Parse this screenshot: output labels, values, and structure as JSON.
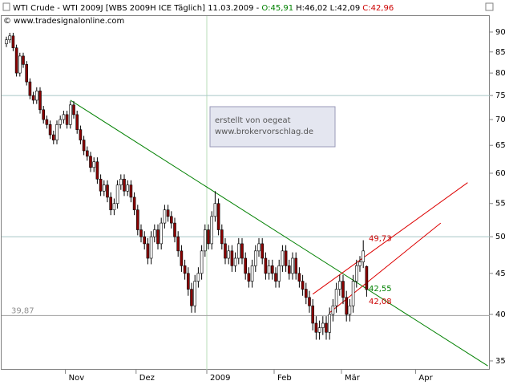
{
  "chart_data": {
    "type": "candlestick",
    "title": "WTI Crude - WTI 2009J [WBS 2009H ICE  Täglich] 11.03.2009 - ",
    "ohlc_labels": [
      {
        "label": "O:45,91",
        "color": "#008000"
      },
      {
        "label": "H:46,02",
        "color": "#000000"
      },
      {
        "label": "L:42,09",
        "color": "#000000"
      },
      {
        "label": "C:42,96",
        "color": "#cc0000"
      }
    ],
    "copyright": "© www.tradesignalonline.com",
    "annotation": [
      "erstellt von oegeat",
      "www.brokervorschlag.de"
    ],
    "categories": [
      null,
      null,
      null,
      null,
      null,
      null,
      null,
      null,
      null,
      null,
      null,
      null,
      null,
      null,
      null,
      null,
      null,
      null,
      "Nov",
      null,
      null,
      null,
      null,
      null,
      null,
      null,
      null,
      null,
      null,
      null,
      null,
      null,
      null,
      null,
      null,
      null,
      null,
      null,
      null,
      "Dez",
      null,
      null,
      null,
      null,
      null,
      null,
      null,
      null,
      null,
      null,
      null,
      null,
      null,
      null,
      null,
      null,
      null,
      null,
      null,
      null,
      "2009",
      null,
      null,
      null,
      null,
      null,
      null,
      null,
      null,
      null,
      null,
      null,
      null,
      null,
      null,
      null,
      null,
      null,
      null,
      null,
      "Feb",
      null,
      null,
      null,
      null,
      null,
      null,
      null,
      null,
      null,
      null,
      null,
      null,
      null,
      null,
      null,
      null,
      null,
      null,
      null,
      "Mär",
      null,
      null,
      null,
      null,
      null,
      null,
      null,
      null,
      null,
      null,
      null,
      null,
      null,
      null,
      null,
      null,
      null,
      null,
      null,
      null,
      null,
      "Apr",
      null,
      null,
      null,
      null,
      null,
      null,
      null,
      null,
      null,
      null,
      null,
      null,
      null,
      null,
      null,
      null,
      null,
      null,
      null,
      null,
      null
    ],
    "open": [
      87,
      88,
      89,
      86,
      80,
      84,
      82,
      78,
      75,
      74,
      76,
      72,
      70,
      69,
      67,
      66,
      69,
      70,
      71,
      69,
      73,
      71,
      68,
      66,
      64,
      63,
      61,
      62,
      59,
      57,
      58,
      56,
      54,
      55,
      58,
      59,
      57,
      58,
      56,
      54,
      51,
      50,
      49,
      47,
      50,
      51,
      49,
      52,
      54,
      53,
      52,
      50,
      48,
      46,
      45,
      43,
      41,
      44,
      45,
      48,
      51,
      49,
      53,
      55,
      51,
      49,
      47,
      48,
      46,
      47,
      49,
      47,
      45,
      44,
      46,
      48,
      49,
      47,
      45,
      46,
      45,
      44,
      46,
      48,
      46,
      45,
      47,
      45,
      44,
      43,
      42,
      41,
      39,
      38,
      38.5,
      39,
      38,
      40,
      41,
      43,
      44,
      42,
      40,
      41,
      44,
      46,
      46.5,
      45.91,
      null,
      null,
      null,
      null,
      null,
      null,
      null,
      null,
      null,
      null,
      null,
      null,
      null,
      null,
      null,
      null,
      null,
      null,
      null,
      null,
      null,
      null,
      null,
      null,
      null,
      null,
      null,
      null,
      null,
      null,
      null,
      null,
      null,
      null,
      null,
      null
    ],
    "high": [
      88.8,
      89.8,
      89.8,
      86.8,
      84.8,
      84.8,
      82.8,
      78.8,
      75.8,
      76.8,
      76.8,
      72.8,
      70.8,
      69.8,
      67.8,
      69.8,
      70.8,
      71.8,
      71.8,
      73.8,
      73.8,
      71.8,
      68.8,
      66.8,
      64.8,
      63.8,
      62.8,
      62.8,
      59.8,
      58.8,
      58.8,
      56.8,
      55.8,
      58.8,
      59.8,
      59.8,
      58.8,
      58.8,
      56.8,
      54.8,
      51.8,
      50.8,
      49.8,
      50.8,
      51.8,
      51.8,
      52.8,
      54.8,
      54.8,
      53.8,
      52.8,
      50.8,
      48.8,
      46.8,
      45.8,
      43.8,
      44.8,
      45.8,
      48.8,
      51.8,
      51.8,
      53.8,
      57,
      55.8,
      51.8,
      49.8,
      48.8,
      48.8,
      47.8,
      49.8,
      49.8,
      47.8,
      45.8,
      46.8,
      48.8,
      49.8,
      49.8,
      47.8,
      46.8,
      46.8,
      45.8,
      46.8,
      48.8,
      48.8,
      46.8,
      47.8,
      47.8,
      45.8,
      44.8,
      43.8,
      42.8,
      41.8,
      39.8,
      39.3,
      39.8,
      39.8,
      40.8,
      41.8,
      43.8,
      44.8,
      44.8,
      42.8,
      41.8,
      44.8,
      46.8,
      47.3,
      49.5,
      46.02,
      null,
      null,
      null,
      null,
      null,
      null,
      null,
      null,
      null,
      null,
      null,
      null,
      null,
      null,
      null,
      null,
      null,
      null,
      null,
      null,
      null,
      null,
      null,
      null,
      null,
      null,
      null,
      null,
      null,
      null,
      null,
      null,
      null,
      null,
      null,
      null
    ],
    "low": [
      86.2,
      87.2,
      85.2,
      79.2,
      79.2,
      81.2,
      77.2,
      74.2,
      73.2,
      73.2,
      71.2,
      69.2,
      68.2,
      66.2,
      65.2,
      65.2,
      68.2,
      69.2,
      68.2,
      68.2,
      70.2,
      67.2,
      65.2,
      63.2,
      62.2,
      60.2,
      60.2,
      58.2,
      56.2,
      56.2,
      55.2,
      53.2,
      53.2,
      54.2,
      57.2,
      56.2,
      56.2,
      55.2,
      53.2,
      50.2,
      49.2,
      48.2,
      46.2,
      46.2,
      49.2,
      48.2,
      48.2,
      51.2,
      52.2,
      51.2,
      49.2,
      47.2,
      45.2,
      44.2,
      42.2,
      40.2,
      40.2,
      43.2,
      44.2,
      47.2,
      48.2,
      48.2,
      52.2,
      50.2,
      48.2,
      46.2,
      46.2,
      45.2,
      45.2,
      46.2,
      46.2,
      44.2,
      43.2,
      43.2,
      45.2,
      47.2,
      46.2,
      44.2,
      44.2,
      44.2,
      43.2,
      43.2,
      45.2,
      45.2,
      44.2,
      44.2,
      44.2,
      43.2,
      42.2,
      41.2,
      40.2,
      38.2,
      37.2,
      37.2,
      37.7,
      37.2,
      37.2,
      39.2,
      40.2,
      42.2,
      41.2,
      39.2,
      39.2,
      40.2,
      43.2,
      45.2,
      45.7,
      42.09,
      null,
      null,
      null,
      null,
      null,
      null,
      null,
      null,
      null,
      null,
      null,
      null,
      null,
      null,
      null,
      null,
      null,
      null,
      null,
      null,
      null,
      null,
      null,
      null,
      null,
      null,
      null,
      null,
      null,
      null,
      null,
      null,
      null,
      null,
      null,
      null
    ],
    "close": [
      88,
      89,
      86,
      80,
      84,
      82,
      78,
      75,
      74,
      76,
      72,
      70,
      69,
      67,
      66,
      69,
      70,
      71,
      69,
      73,
      71,
      68,
      66,
      64,
      63,
      61,
      62,
      59,
      57,
      58,
      56,
      54,
      55,
      58,
      59,
      57,
      58,
      56,
      54,
      51,
      50,
      49,
      47,
      50,
      51,
      49,
      52,
      54,
      53,
      52,
      50,
      48,
      46,
      45,
      43,
      41,
      44,
      45,
      48,
      51,
      49,
      53,
      55,
      51,
      49,
      47,
      48,
      46,
      47,
      49,
      47,
      45,
      44,
      46,
      48,
      49,
      47,
      45,
      46,
      45,
      44,
      46,
      48,
      46,
      45,
      47,
      45,
      44,
      43,
      42,
      41,
      39,
      38,
      38.5,
      39,
      38,
      40,
      41,
      43,
      44,
      42,
      40,
      41,
      44,
      46,
      46.5,
      48,
      42.96,
      null,
      null,
      null,
      null,
      null,
      null,
      null,
      null,
      null,
      null,
      null,
      null,
      null,
      null,
      null,
      null,
      null,
      null,
      null,
      null,
      null,
      null,
      null,
      null,
      null,
      null,
      null,
      null,
      null,
      null,
      null,
      null,
      null,
      null,
      null,
      null
    ],
    "up_color": "#ffffff",
    "down_color": "#8b0000",
    "ylim": [
      34.2,
      93.8
    ],
    "log_scale": true,
    "yticks": [
      35,
      40,
      45,
      50,
      55,
      60,
      65,
      70,
      75,
      80,
      85,
      90
    ],
    "hlines": [
      75,
      50
    ],
    "support": {
      "value": 39.87,
      "label": "39,87"
    },
    "trendlines": [
      {
        "color": "#008000",
        "from": [
          19,
          74.0
        ],
        "to": [
          143,
          34.5
        ]
      },
      {
        "color": "#dd0000",
        "from": [
          91,
          42.4
        ],
        "to": [
          137,
          58.4
        ]
      },
      {
        "color": "#dd0000",
        "from": [
          96,
          40.2
        ],
        "to": [
          129,
          52.0
        ]
      }
    ],
    "level_labels": [
      {
        "value": 49.73,
        "label": "49,73",
        "color": "#cc0000"
      },
      {
        "value": 42.55,
        "label": "42,55",
        "color": "#008000"
      },
      {
        "value": 42.08,
        "label": "42,08",
        "color": "#cc0000"
      }
    ]
  }
}
